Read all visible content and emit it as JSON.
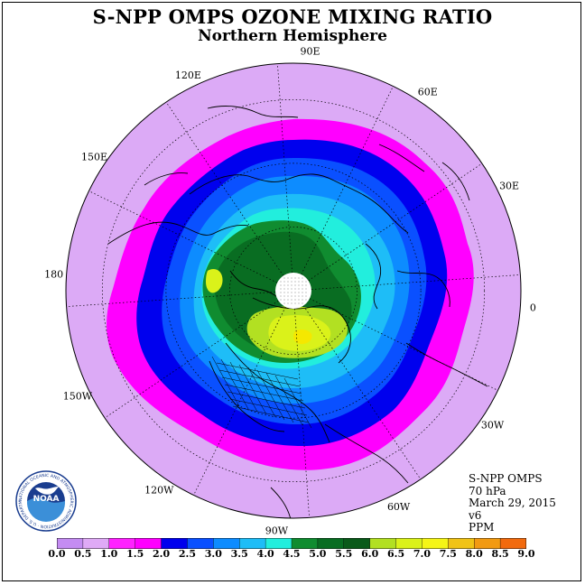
{
  "title": "S-NPP OMPS OZONE MIXING RATIO",
  "subtitle": "Northern Hemisphere",
  "info": {
    "instrument": "S-NPP OMPS",
    "level": "70 hPa",
    "date": "March 29, 2015",
    "version": "v6",
    "units": "PPM"
  },
  "longitude_labels": [
    "90E",
    "60E",
    "30E",
    "0",
    "30W",
    "60W",
    "90W",
    "120W",
    "150W",
    "180",
    "150E",
    "120E"
  ],
  "logo": {
    "text": "NOAA",
    "ring_text": "NATIONAL OCEANIC AND ATMOSPHERIC ADMINISTRATION · U.S. DEPARTMENT OF COMMERCE"
  },
  "colorbar": {
    "ticks": [
      "0.0",
      "0.5",
      "1.0",
      "1.5",
      "2.0",
      "2.5",
      "3.0",
      "3.5",
      "4.0",
      "4.5",
      "5.0",
      "5.5",
      "6.0",
      "6.5",
      "7.0",
      "7.5",
      "8.0",
      "8.5",
      "9.0"
    ],
    "colors": [
      "#c48cf2",
      "#dfaaf6",
      "#ff22ff",
      "#ff00ff",
      "#0000ee",
      "#0a50ff",
      "#0d8cff",
      "#1ebdf7",
      "#22eedd",
      "#108c30",
      "#096d22",
      "#0a5a1a",
      "#b2e022",
      "#daf21a",
      "#f5f517",
      "#f0c316",
      "#f29a12",
      "#f26a0e",
      "#f01308",
      "#8a5a3d"
    ]
  },
  "map_colors": {
    "outer": "#dcaaf6",
    "magenta": "#ff00ff",
    "dark_blue": "#0000ee",
    "blue": "#0a50ff",
    "mid_blue": "#0d8cff",
    "light_blue": "#1ebdf7",
    "cyan": "#22eedd",
    "green": "#108c30",
    "dark_green": "#096d22",
    "lime": "#b2e022",
    "yellow": "#daf21a",
    "gold": "#f5e800"
  }
}
